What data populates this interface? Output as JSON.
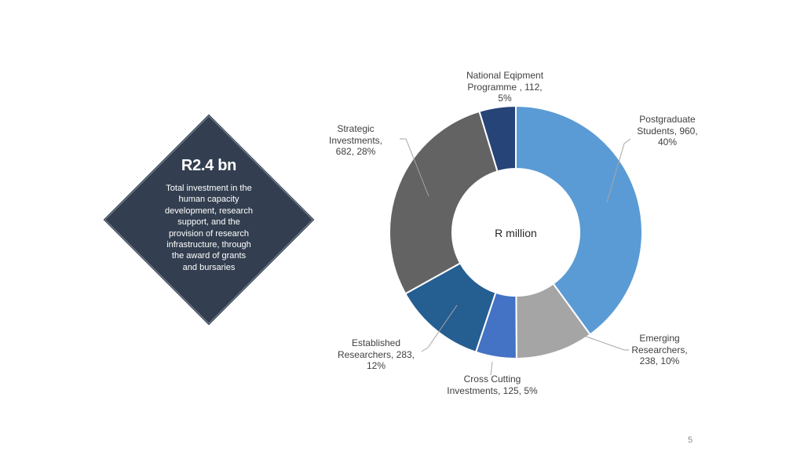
{
  "summary": {
    "headline": "R2.4 bn",
    "description": "Total investment in the human capacity development, research support, and the provision of research infrastructure, through the award of grants and bursaries"
  },
  "chart_data": {
    "type": "pie",
    "center_label": "R million",
    "slices": [
      {
        "name": "Postgraduate Students",
        "value": 960,
        "percent": "40%",
        "label_lines": [
          "Postgraduate",
          "Students, 960,",
          "40%"
        ],
        "color": "#5b9bd5"
      },
      {
        "name": "Emerging Researchers",
        "value": 238,
        "percent": "10%",
        "label_lines": [
          "Emerging",
          "Researchers,",
          "238, 10%"
        ],
        "color": "#a5a5a5"
      },
      {
        "name": "Cross Cutting Investments",
        "value": 125,
        "percent": "5%",
        "label_lines": [
          "Cross Cutting",
          "Investments, 125, 5%"
        ],
        "color": "#4472c4"
      },
      {
        "name": "Established Researchers",
        "value": 283,
        "percent": "12%",
        "label_lines": [
          "Established",
          "Researchers, 283,",
          "12%"
        ],
        "color": "#255e91"
      },
      {
        "name": "Strategic Investments",
        "value": 682,
        "percent": "28%",
        "label_lines": [
          "Strategic",
          "Investments,",
          "682, 28%"
        ],
        "color": "#636363"
      },
      {
        "name": "National Eqipment Programme",
        "value": 112,
        "percent": "5%",
        "label_lines": [
          "National  Eqipment",
          "Programme , 112,",
          "5%"
        ],
        "color": "#264478"
      }
    ]
  },
  "page_number": "5"
}
